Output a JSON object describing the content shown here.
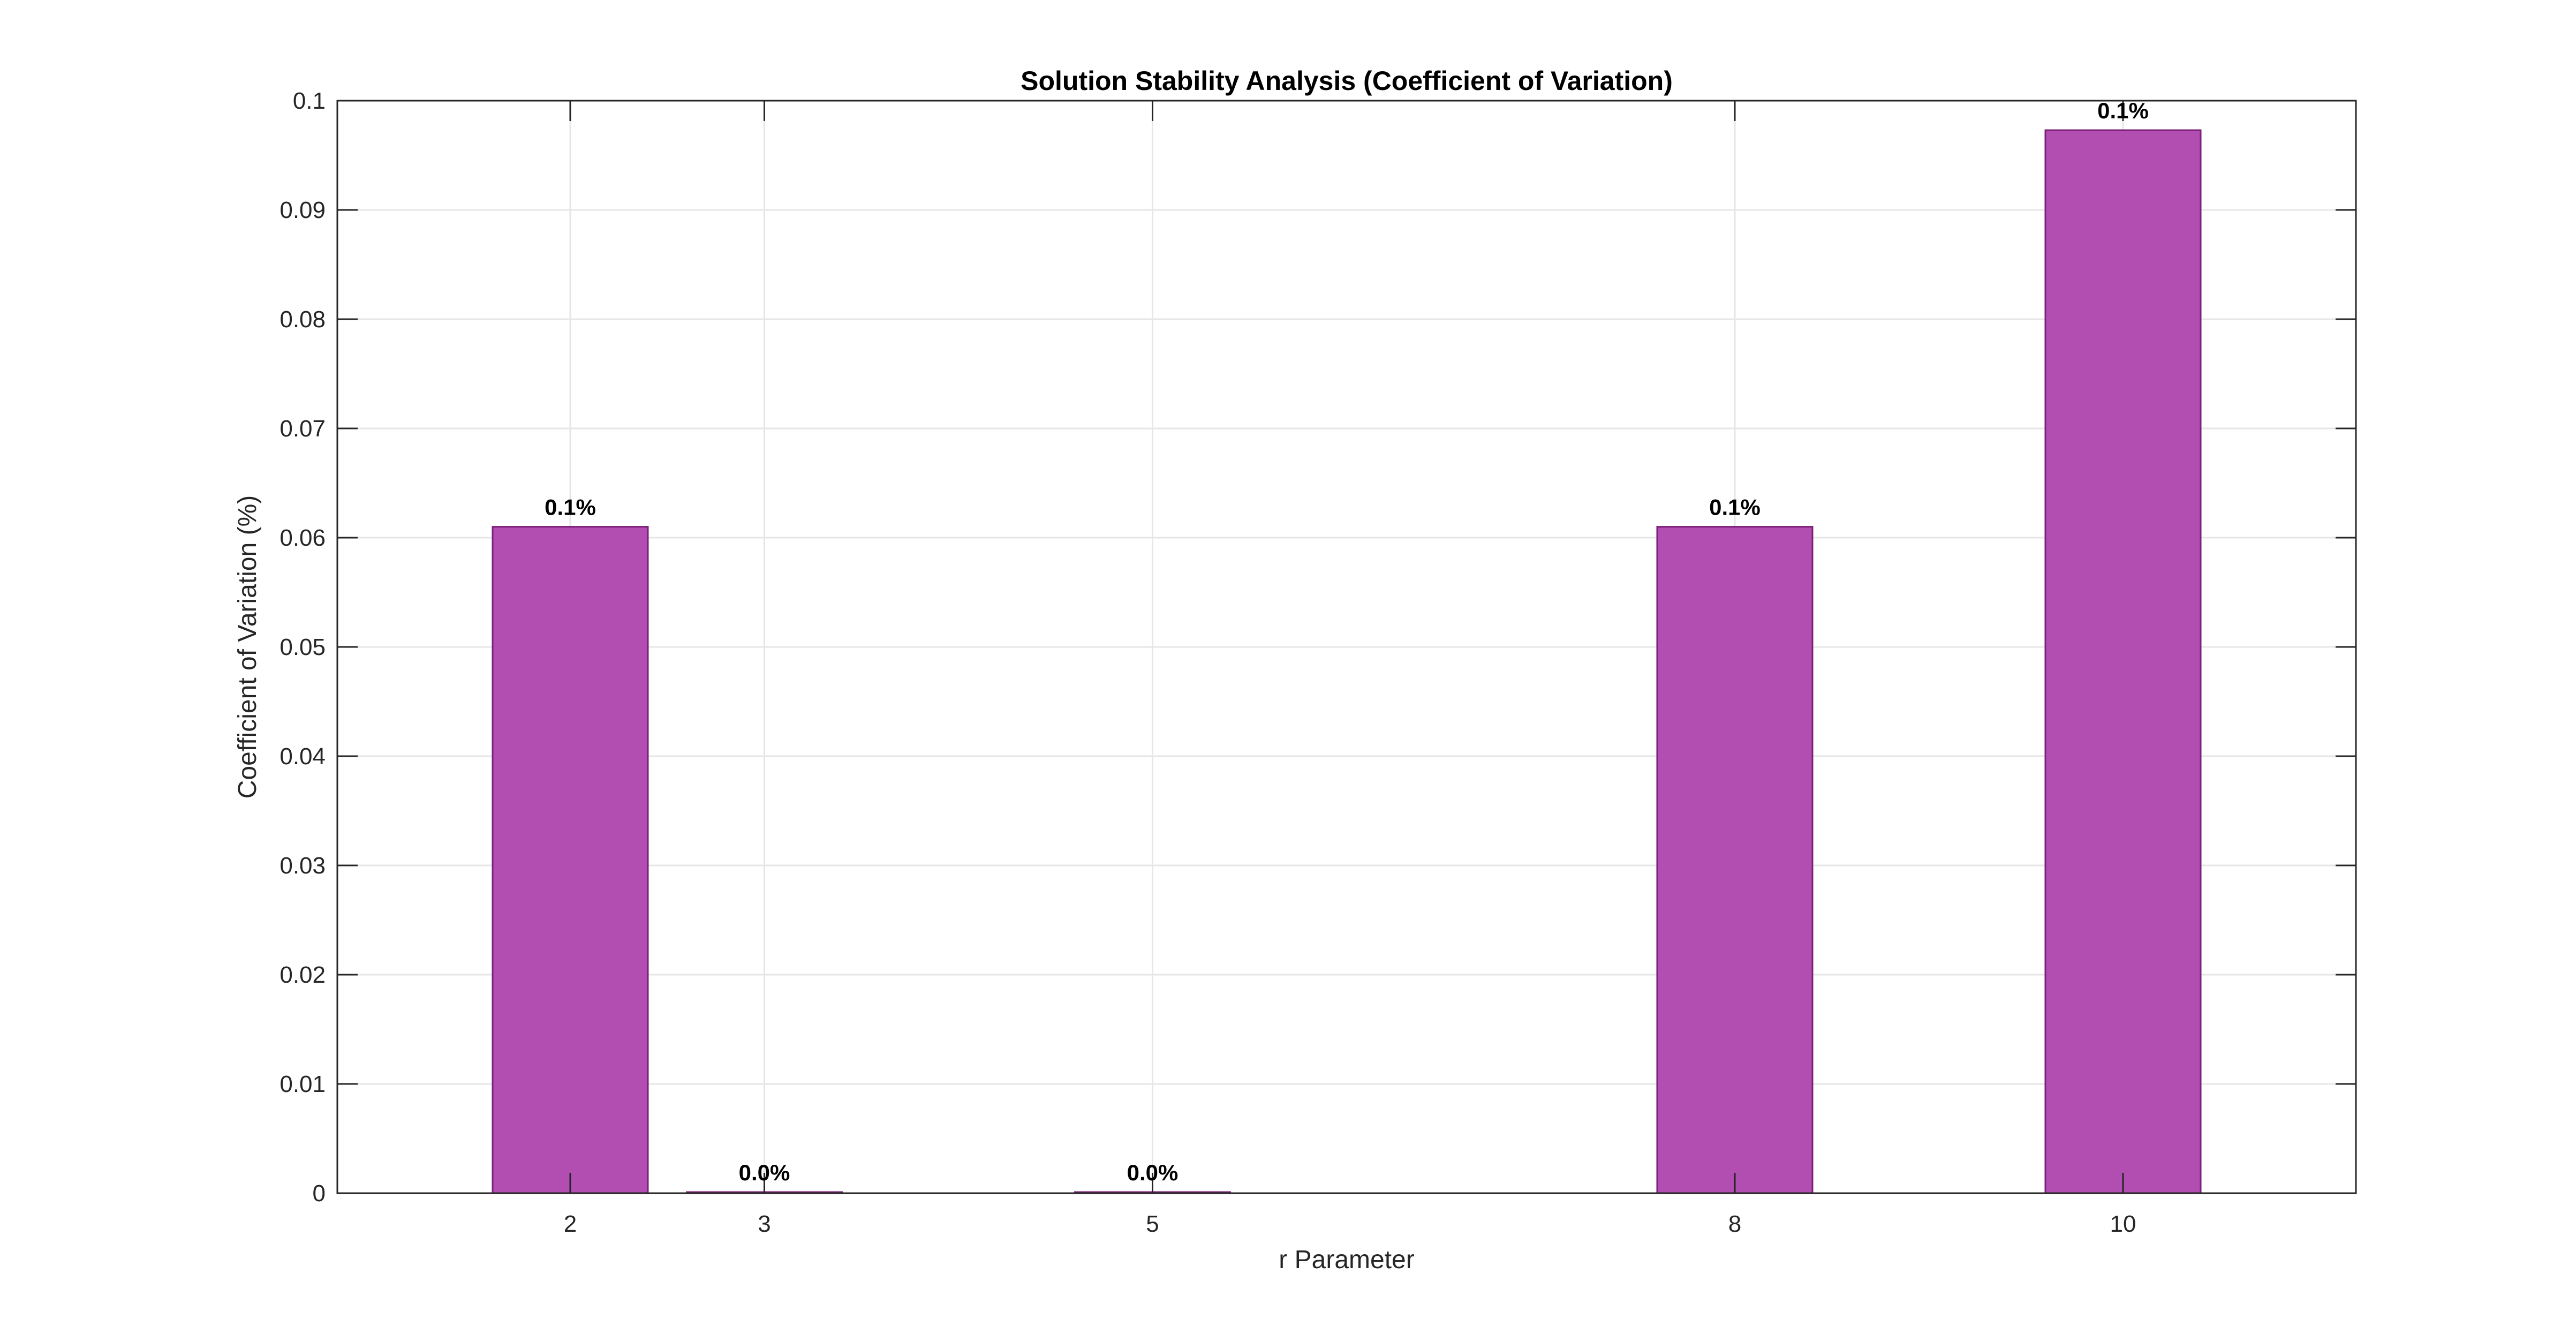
{
  "chart_data": {
    "type": "bar",
    "title": "Solution Stability Analysis (Coefficient of Variation)",
    "xlabel": "r Parameter",
    "ylabel": "Coefficient of Variation (%)",
    "x": [
      2,
      3,
      5,
      8,
      10
    ],
    "values": [
      0.061,
      0.0001,
      0.0001,
      0.061,
      0.0973
    ],
    "data_labels": [
      "0.1%",
      "0.0%",
      "0.0%",
      "0.1%",
      "0.1%"
    ],
    "xlim": [
      0.8,
      11.2
    ],
    "ylim": [
      0,
      0.1
    ],
    "yticks": [
      0,
      0.01,
      0.02,
      0.03,
      0.04,
      0.05,
      0.06,
      0.07,
      0.08,
      0.09,
      0.1
    ],
    "ytick_labels": [
      "0",
      "0.01",
      "0.02",
      "0.03",
      "0.04",
      "0.05",
      "0.06",
      "0.07",
      "0.08",
      "0.09",
      "0.1"
    ],
    "xtick_labels": [
      "2",
      "3",
      "5",
      "8",
      "10"
    ],
    "bar_width": 0.8,
    "grid": true,
    "colors": {
      "bar_fill": "#b24db2",
      "bar_edge": "#7a1f7a"
    }
  }
}
